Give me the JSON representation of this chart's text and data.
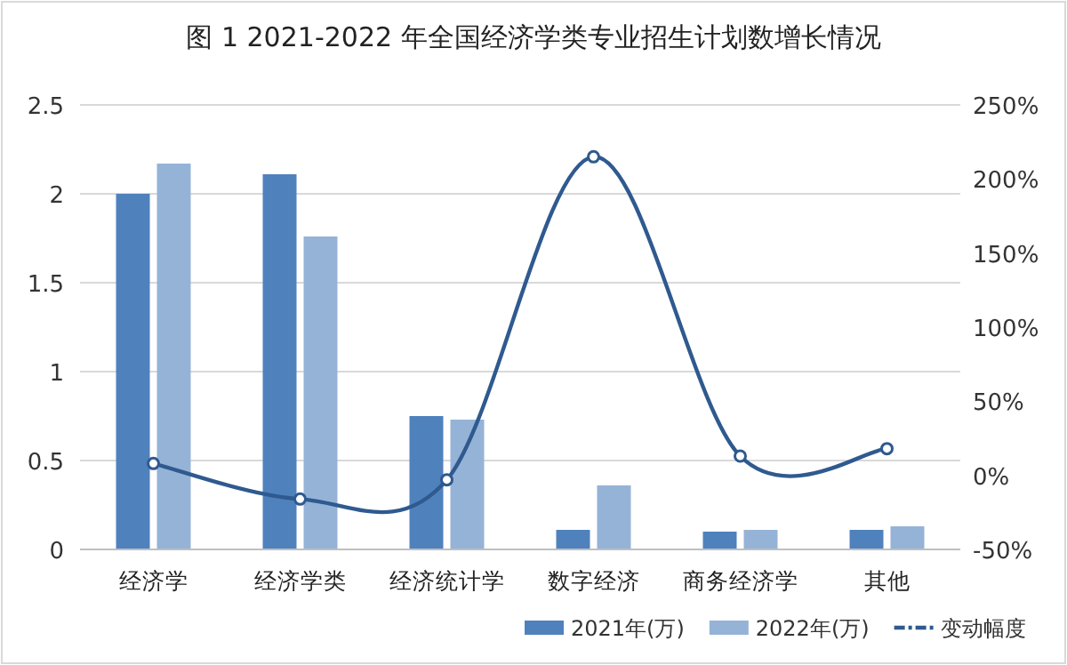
{
  "chart_data": {
    "type": "bar",
    "title": "图 1 2021-2022 年全国经济学类专业招生计划数增长情况",
    "categories": [
      "经济学",
      "经济学类",
      "经济统计学",
      "数字经济",
      "商务经济学",
      "其他"
    ],
    "series": [
      {
        "name": "2021年(万)",
        "color": "#4f81bd",
        "values": [
          2.0,
          2.11,
          0.75,
          0.11,
          0.1,
          0.11
        ]
      },
      {
        "name": "2022年(万)",
        "color": "#95b3d7",
        "values": [
          2.17,
          1.76,
          0.73,
          0.36,
          0.11,
          0.13
        ]
      },
      {
        "name": "变动幅度",
        "type": "line",
        "axis": "y2",
        "color": "#2f5a8f",
        "marker": "circle",
        "values": [
          8,
          -16,
          -3,
          215,
          13,
          18
        ]
      }
    ],
    "ylim": [
      0,
      2.5
    ],
    "yticks": [
      0,
      0.5,
      1,
      1.5,
      2,
      2.5
    ],
    "y2lim": [
      -50,
      250
    ],
    "y2ticks": [
      {
        "value": -50,
        "label": "-50%"
      },
      {
        "value": 0,
        "label": "0%"
      },
      {
        "value": 50,
        "label": "50%"
      },
      {
        "value": 100,
        "label": "100%"
      },
      {
        "value": 150,
        "label": "150%"
      },
      {
        "value": 200,
        "label": "200%"
      },
      {
        "value": 250,
        "label": "250%"
      }
    ],
    "grid": "y",
    "legend": "bottom right"
  }
}
